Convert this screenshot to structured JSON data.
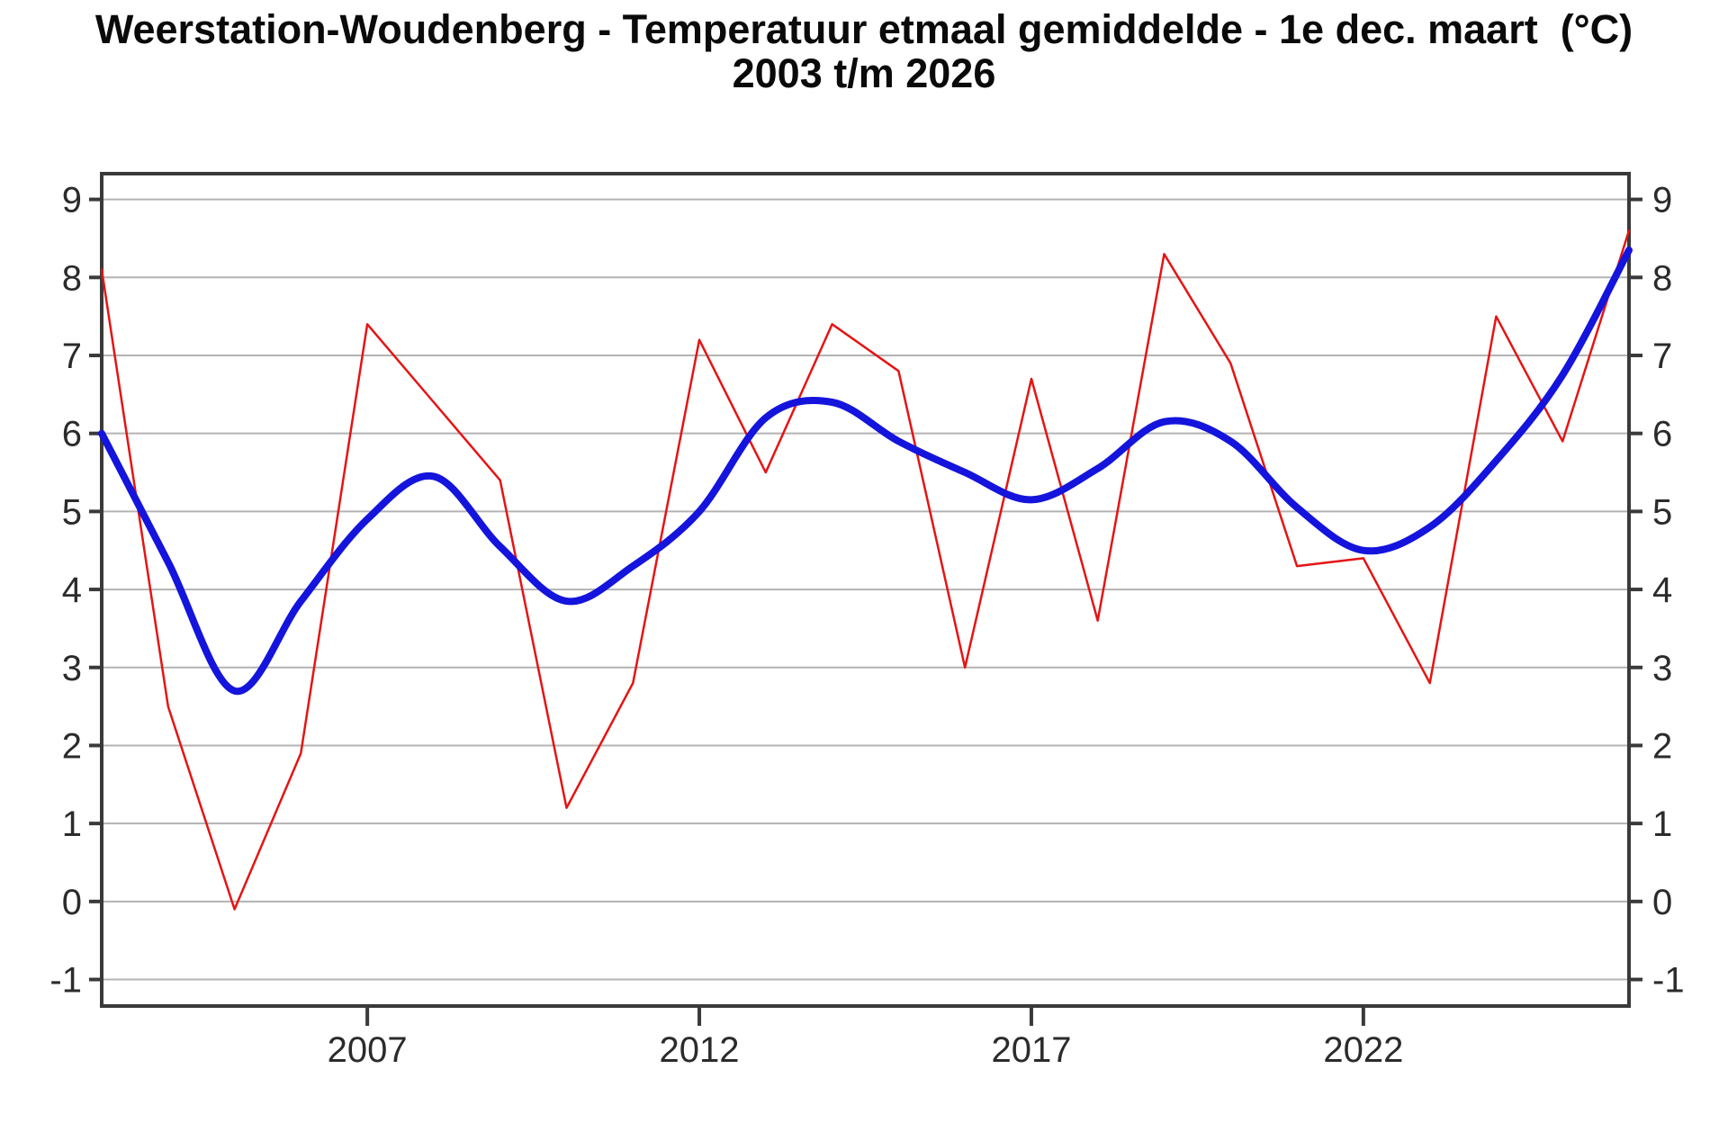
{
  "title": {
    "line1": "Weerstation-Woudenberg - Temperatuur etmaal gemiddelde - 1e dec. maart  (°C)",
    "line2": "2003 t/m 2026"
  },
  "colors": {
    "background": "#ffffff",
    "title_text": "#0a0a0a",
    "tick_text": "#2b2b2b",
    "grid": "#b3b3b3",
    "axis_frame": "#3a3a3a",
    "red_series": "#e51414",
    "blue_trend": "#1414dd"
  },
  "chart_data": {
    "type": "line",
    "title": "Weerstation-Woudenberg - Temperatuur etmaal gemiddelde - 1e dec. maart  (°C)",
    "subtitle": "2003 t/m 2026",
    "xlabel": "",
    "ylabel": "",
    "x": [
      2003,
      2004,
      2005,
      2006,
      2007,
      2008,
      2009,
      2010,
      2011,
      2012,
      2013,
      2014,
      2015,
      2016,
      2017,
      2018,
      2019,
      2020,
      2021,
      2022,
      2023,
      2024,
      2025,
      2026
    ],
    "series": [
      {
        "name": "yearly_value",
        "color": "#e51414",
        "width": 2.5,
        "smooth": false,
        "values": [
          8.1,
          2.5,
          -0.1,
          1.9,
          7.4,
          6.4,
          5.4,
          1.2,
          2.8,
          7.2,
          5.5,
          7.4,
          6.8,
          3.0,
          6.7,
          3.6,
          8.3,
          6.9,
          4.3,
          4.4,
          2.8,
          7.5,
          5.9,
          8.6
        ]
      },
      {
        "name": "smoothed_trend",
        "color": "#1414dd",
        "width": 8,
        "smooth": true,
        "values": [
          6.0,
          4.35,
          2.7,
          3.85,
          4.9,
          5.45,
          4.55,
          3.85,
          4.3,
          5.0,
          6.2,
          6.4,
          5.9,
          5.5,
          5.15,
          5.55,
          6.15,
          5.9,
          5.05,
          4.5,
          4.8,
          5.65,
          6.75,
          8.35
        ]
      }
    ],
    "xlim": [
      2003,
      2026
    ],
    "ylim": [
      -1.34,
      9.33
    ],
    "xticks": [
      2007,
      2012,
      2017,
      2022
    ],
    "yticks": [
      -1,
      0,
      1,
      2,
      3,
      4,
      5,
      6,
      7,
      8,
      9
    ],
    "y_axis_labels": "both-sides",
    "grid": "horizontal-only",
    "legend_position": "none"
  }
}
